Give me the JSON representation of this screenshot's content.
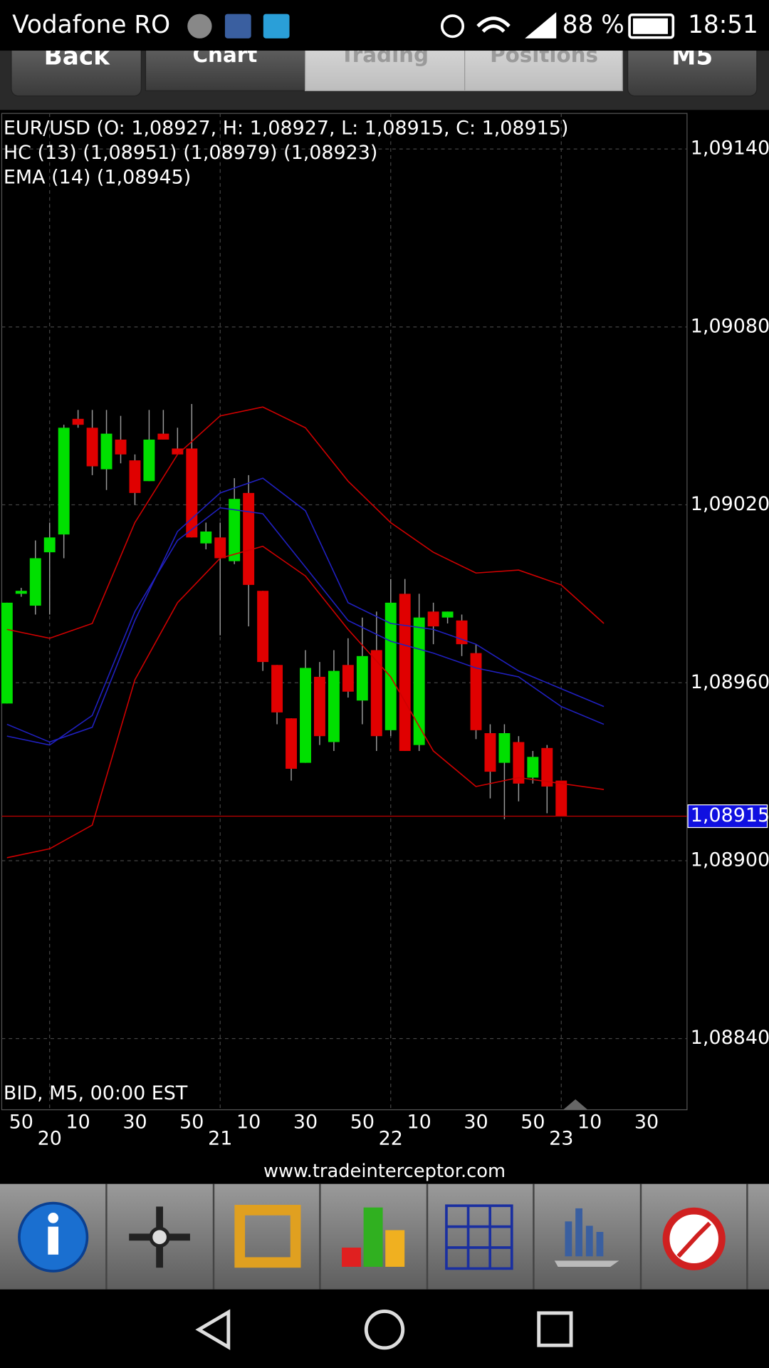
{
  "status_bar": {
    "carrier": "Vodafone RO",
    "battery": "88 %",
    "time": "18:51"
  },
  "tabs": [
    "Back",
    "Chart",
    "Trading",
    "Positions",
    "M5"
  ],
  "website": "www.tradeinterceptor.com",
  "chart_data": {
    "type": "candlestick",
    "legend_lines": [
      "EUR/USD (O: 1,08927, H: 1,08927, L: 1,08915, C: 1,08915)",
      "HC (13) (1,08951) (1,08979) (1,08923)",
      "EMA (14) (1,08945)"
    ],
    "footer_label": "BID, M5, 00:00 EST",
    "up_color": "#00e000",
    "down_color": "#e00000",
    "open": [
      1.08953,
      1.0899,
      1.08986,
      1.09004,
      1.0901,
      1.09049,
      1.09046,
      1.09032,
      1.09042,
      1.09035,
      1.09028,
      1.09044,
      1.09039,
      1.09039,
      1.09007,
      1.09009,
      1.09001,
      1.09024,
      1.08991,
      1.08966,
      1.08948,
      1.08933,
      1.08962,
      1.0894,
      1.08966,
      1.08954,
      1.08971,
      1.08944,
      1.0899,
      1.08939,
      1.08984,
      1.08982,
      1.08981,
      1.0897,
      1.08943,
      1.08933,
      1.0894,
      1.08928,
      1.08938,
      1.08927
    ],
    "high": [
      1.08987,
      1.08992,
      1.09008,
      1.09014,
      1.09047,
      1.09052,
      1.09052,
      1.09052,
      1.0905,
      1.09037,
      1.09052,
      1.09052,
      1.09046,
      1.09054,
      1.09014,
      1.09014,
      1.09029,
      1.0903,
      1.08991,
      1.08966,
      1.08948,
      1.08971,
      1.08967,
      1.08971,
      1.08975,
      1.08982,
      1.08984,
      1.08995,
      1.08995,
      1.0899,
      1.08987,
      1.08984,
      1.08983,
      1.08973,
      1.08946,
      1.08946,
      1.08942,
      1.08937,
      1.08939,
      1.08927
    ],
    "low": [
      1.08953,
      1.08989,
      1.08983,
      1.08983,
      1.09002,
      1.09046,
      1.0903,
      1.09025,
      1.09034,
      1.0902,
      1.09028,
      1.09042,
      1.09037,
      1.09009,
      1.09005,
      1.08976,
      1.09,
      1.08979,
      1.08964,
      1.08946,
      1.08927,
      1.08933,
      1.08939,
      1.08937,
      1.08955,
      1.08946,
      1.08937,
      1.08942,
      1.08937,
      1.08937,
      1.08973,
      1.0898,
      1.08969,
      1.08941,
      1.08921,
      1.08914,
      1.0892,
      1.08926,
      1.08916,
      1.08915
    ],
    "close": [
      1.08987,
      1.08991,
      1.09002,
      1.09009,
      1.09046,
      1.09047,
      1.09033,
      1.09044,
      1.09037,
      1.09024,
      1.09042,
      1.09042,
      1.09037,
      1.09009,
      1.09011,
      1.09002,
      1.09022,
      1.08993,
      1.08967,
      1.0895,
      1.08931,
      1.08965,
      1.08942,
      1.08964,
      1.08957,
      1.08969,
      1.08942,
      1.08987,
      1.08937,
      1.08982,
      1.08979,
      1.08984,
      1.08973,
      1.08944,
      1.0893,
      1.08943,
      1.08926,
      1.08935,
      1.08925,
      1.08915
    ],
    "series": [
      {
        "color": "#d00000",
        "x": [
          0,
          3,
          6,
          9,
          12,
          15,
          18,
          21,
          24,
          27,
          30,
          33,
          36,
          39,
          42
        ],
        "values": [
          1.08978,
          1.08975,
          1.0898,
          1.09014,
          1.09037,
          1.0905,
          1.09053,
          1.09046,
          1.09028,
          1.09014,
          1.09004,
          1.08997,
          1.08998,
          1.08993,
          1.0898
        ]
      },
      {
        "color": "#2020c0",
        "x": [
          0,
          3,
          6,
          9,
          12,
          15,
          18,
          21,
          24,
          27,
          30,
          33,
          36,
          39,
          42
        ],
        "values": [
          1.08946,
          1.0894,
          1.08945,
          1.08981,
          1.09011,
          1.09024,
          1.09029,
          1.09018,
          1.08987,
          1.0898,
          1.08978,
          1.08973,
          1.08964,
          1.08958,
          1.08952
        ]
      },
      {
        "color": "#2020c0",
        "x": [
          0,
          3,
          6,
          9,
          12,
          15,
          18,
          21,
          24,
          27,
          30,
          33,
          36,
          39,
          42
        ],
        "values": [
          1.08942,
          1.08939,
          1.08949,
          1.08984,
          1.09008,
          1.09019,
          1.09017,
          1.08999,
          1.08981,
          1.08974,
          1.0897,
          1.08965,
          1.08962,
          1.08952,
          1.08946
        ]
      },
      {
        "color": "#d00000",
        "x": [
          0,
          3,
          6,
          9,
          12,
          15,
          18,
          21,
          24,
          27,
          30,
          33,
          36,
          39,
          42
        ],
        "values": [
          1.08901,
          1.08904,
          1.08912,
          1.08961,
          1.08987,
          1.09002,
          1.09006,
          1.08996,
          1.08978,
          1.08962,
          1.08937,
          1.08925,
          1.08928,
          1.08926,
          1.08924
        ]
      }
    ],
    "last_price": {
      "value": 1.08915,
      "label": "1,08915"
    },
    "ylim": [
      1.08816,
      1.09152
    ],
    "yticks": [
      {
        "value": 1.0914,
        "label": "1,09140"
      },
      {
        "value": 1.0908,
        "label": "1,09080"
      },
      {
        "value": 1.0902,
        "label": "1,09020"
      },
      {
        "value": 1.0896,
        "label": "1,08960"
      },
      {
        "value": 1.089,
        "label": "1,08900"
      },
      {
        "value": 1.0884,
        "label": "1,08840"
      }
    ],
    "xlim": [
      -0.37,
      47.85
    ],
    "xticks": [
      {
        "value": 1,
        "label": "50"
      },
      {
        "value": 5,
        "label": "10"
      },
      {
        "value": 9,
        "label": "30"
      },
      {
        "value": 13,
        "label": "50"
      },
      {
        "value": 17,
        "label": "10"
      },
      {
        "value": 21,
        "label": "30"
      },
      {
        "value": 25,
        "label": "50"
      },
      {
        "value": 29,
        "label": "10"
      },
      {
        "value": 33,
        "label": "30"
      },
      {
        "value": 37,
        "label": "50"
      },
      {
        "value": 41,
        "label": "10"
      },
      {
        "value": 45,
        "label": "30"
      }
    ],
    "hour_ticks": [
      {
        "value": 3,
        "label": "20"
      },
      {
        "value": 15,
        "label": "21"
      },
      {
        "value": 27,
        "label": "22"
      },
      {
        "value": 39,
        "label": "23"
      }
    ],
    "grid": true
  }
}
